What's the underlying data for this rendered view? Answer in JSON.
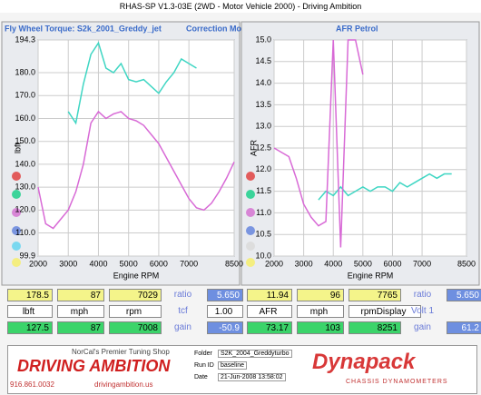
{
  "window_title": "RHAS-SP V1.3-03E  (2WD - Motor Vehicle 2000) - Driving Ambition",
  "chart_data": [
    {
      "type": "line",
      "title": "Fly Wheel Torque: S2k_2001_Greddy_jet",
      "subtitle": "Correction Mo",
      "x_label": "Engine RPM",
      "y_label": "lbft",
      "x": [
        2000,
        2250,
        2500,
        2750,
        3000,
        3250,
        3500,
        3750,
        4000,
        4250,
        4500,
        4750,
        5000,
        5250,
        5500,
        5750,
        6000,
        6250,
        6500,
        6750,
        7000,
        7250,
        7500,
        7750,
        8000,
        8250,
        8500
      ],
      "xlim": [
        2000,
        8500
      ],
      "xticks": [
        2000,
        3000,
        4000,
        5000,
        6000,
        7000,
        8500
      ],
      "ylim": [
        99.9,
        194.3
      ],
      "yticks": [
        99.9,
        {
          "value": 110,
          "label": "110.0"
        },
        {
          "value": 120,
          "label": "120.0"
        },
        {
          "value": 130,
          "label": "130.0"
        },
        {
          "value": 140,
          "label": "140.0"
        },
        {
          "value": 150,
          "label": "150.0"
        },
        {
          "value": 160,
          "label": "160.0"
        },
        {
          "value": 170,
          "label": "170.0"
        },
        {
          "value": 180,
          "label": "180.0"
        },
        194.3
      ],
      "series": [
        {
          "color": "#3fd6c3",
          "values": [
            null,
            null,
            null,
            null,
            163,
            158,
            175,
            188,
            193,
            182,
            180,
            184,
            177,
            176,
            177,
            174,
            171,
            176,
            180,
            186,
            184,
            182,
            null,
            null,
            null,
            null,
            null
          ]
        },
        {
          "color": "#d86ad6",
          "values": [
            130,
            114,
            112,
            116,
            120,
            128,
            140,
            158,
            163,
            160,
            162,
            163,
            160,
            159,
            157,
            153,
            149,
            143,
            137,
            131,
            125,
            121,
            120,
            123,
            128,
            134,
            141
          ]
        }
      ]
    },
    {
      "type": "line",
      "title": "AFR Petrol",
      "x_label": "Engine RPM",
      "y_label": "AFR",
      "x": [
        2000,
        2250,
        2500,
        2750,
        3000,
        3250,
        3500,
        3750,
        4000,
        4250,
        4500,
        4750,
        5000,
        5250,
        5500,
        5750,
        6000,
        6250,
        6500,
        6750,
        7000,
        7250,
        7500,
        7750,
        8000,
        8250,
        8500
      ],
      "xlim": [
        2000,
        8500
      ],
      "xticks": [
        2000,
        3000,
        4000,
        5000,
        6000,
        7000,
        8500
      ],
      "ylim": [
        10,
        15
      ],
      "yticks": [
        {
          "value": 10,
          "label": "10.0"
        },
        10.5,
        {
          "value": 11,
          "label": "11.0"
        },
        11.5,
        {
          "value": 12,
          "label": "12.0"
        },
        12.5,
        {
          "value": 13,
          "label": "13.0"
        },
        13.5,
        {
          "value": 14,
          "label": "14.0"
        },
        14.5,
        {
          "value": 15,
          "label": "15.0"
        }
      ],
      "series": [
        {
          "color": "#3fd6c3",
          "values": [
            null,
            null,
            null,
            null,
            null,
            null,
            11.3,
            11.5,
            11.4,
            11.6,
            11.4,
            11.5,
            11.6,
            11.5,
            11.6,
            11.6,
            11.5,
            11.7,
            11.6,
            11.7,
            11.8,
            11.9,
            11.8,
            11.9,
            11.9,
            null,
            null
          ]
        },
        {
          "color": "#d86ad6",
          "values": [
            12.5,
            12.4,
            12.3,
            11.8,
            11.2,
            10.9,
            10.7,
            10.8,
            15,
            10.2,
            15,
            15,
            14.2,
            null,
            null,
            null,
            null,
            null,
            null,
            null,
            null,
            null,
            null,
            null,
            null,
            null,
            null
          ]
        }
      ]
    }
  ],
  "readouts": {
    "left": {
      "row1": [
        "178.5",
        "87",
        "7029",
        "ratio",
        "5.650"
      ],
      "row2": [
        "lbft",
        "mph",
        "rpm",
        "tcf",
        "1.00"
      ],
      "row3": [
        "127.5",
        "87",
        "7008",
        "gain",
        "-50.9"
      ]
    },
    "right": {
      "row1": [
        "11.94",
        "96",
        "7765",
        "ratio",
        "5.650"
      ],
      "row2": [
        "AFR",
        "mph",
        "rpmDisplay",
        "Volt 1"
      ],
      "row3": [
        "73.17",
        "103",
        "8251",
        "gain",
        "61.2"
      ]
    }
  },
  "footer": {
    "tagline": "NorCal's Premier Tuning Shop",
    "brand": "DRIVING AMBITION",
    "phone": "916.861.0032",
    "url": "drivingambition.us",
    "folder_label": "Folder",
    "folder": "S2K_2004_Greddyturbo",
    "run_label": "Run ID",
    "run": "baseline",
    "date_label": "Date",
    "date": "21-Jun-2008  13:58:02",
    "dyno": "Dynapack",
    "dyno_sub": "CHASSIS DYNAMOMETERS"
  }
}
